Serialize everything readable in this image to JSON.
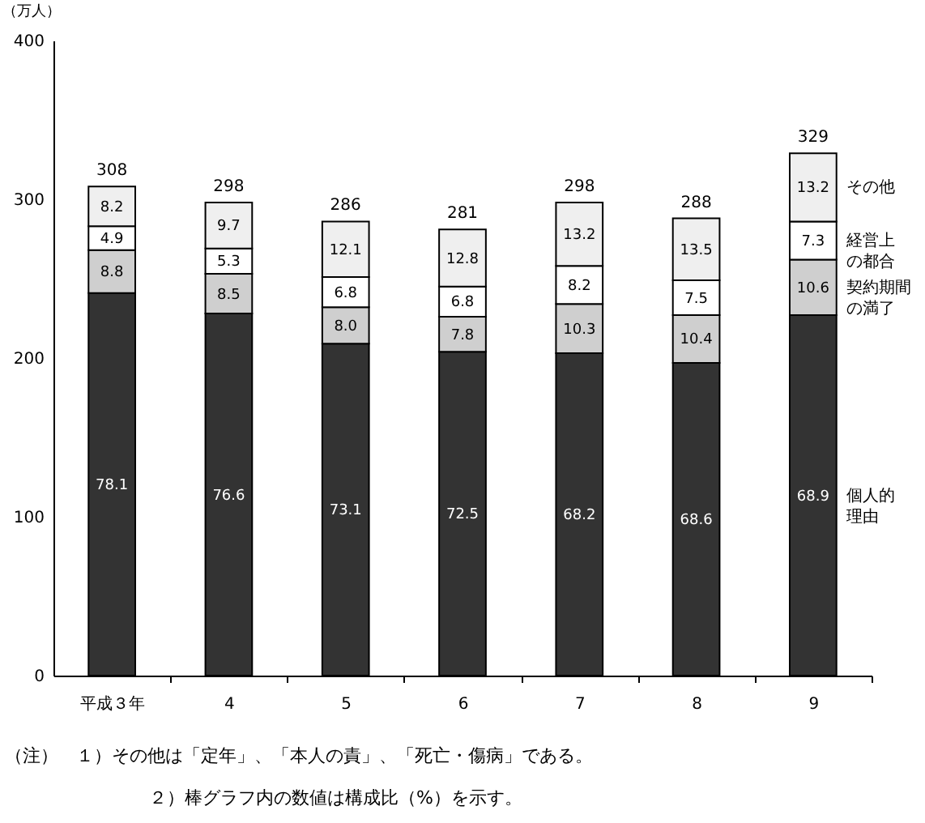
{
  "chart_data": {
    "type": "bar",
    "stacked": true,
    "ylabel": "（万人）",
    "grid": false,
    "categories": [
      "平成３年",
      "4",
      "5",
      "6",
      "7",
      "8",
      "9"
    ],
    "ylim": [
      0,
      400
    ],
    "yticks": [
      0,
      100,
      200,
      300,
      400
    ],
    "series": [
      {
        "name": "個人的理由",
        "color": "#333333",
        "values": [
          241,
          228,
          209,
          204,
          203,
          197,
          227
        ]
      },
      {
        "name": "契約期間の満了",
        "color": "#cfcfcf",
        "values": [
          27,
          25,
          23,
          22,
          31,
          30,
          35
        ]
      },
      {
        "name": "経営上の都合",
        "color": "#ffffff",
        "values": [
          15,
          16,
          19,
          19,
          24,
          22,
          24
        ]
      },
      {
        "name": "その他",
        "color": "#efefef",
        "values": [
          25,
          29,
          35,
          36,
          40,
          39,
          43
        ]
      }
    ],
    "totals": [
      "308",
      "298",
      "286",
      "281",
      "298",
      "288",
      "329"
    ],
    "annotations": [
      "（注）　１）その他は「定年」、「本人の責」、「死亡・傷病」である。",
      "２）棒グラフ内の数値は構成比（%）を示す。",
      "78.1",
      "8.8",
      "4.9",
      "8.2",
      "76.6",
      "8.5",
      "5.3",
      "9.7",
      "73.1",
      "8.0",
      "6.8",
      "12.1",
      "72.5",
      "7.8",
      "6.8",
      "12.8",
      "68.2",
      "10.3",
      "8.2",
      "13.2",
      "68.6",
      "10.4",
      "7.5",
      "13.5",
      "68.9",
      "10.6",
      "7.3",
      "13.2"
    ]
  }
}
